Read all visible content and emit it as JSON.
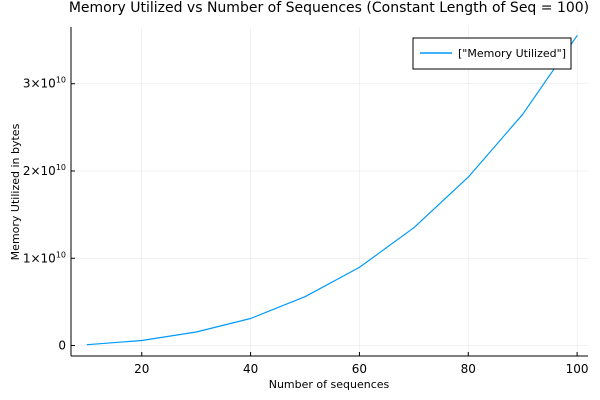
{
  "chart_data": {
    "type": "line",
    "title": "Memory Utilized vs Number of Sequences (Constant Length of Seq = 100)",
    "xlabel": "Number of sequences",
    "ylabel": "Memory Utilized in bytes",
    "xlim": [
      7,
      102
    ],
    "ylim": [
      -1200000000,
      36500000000
    ],
    "x_ticks": [
      20,
      40,
      60,
      80,
      100
    ],
    "y_ticks": [
      {
        "value": 0,
        "label": "0"
      },
      {
        "value": 10000000000,
        "label": "1×10",
        "exp": "10"
      },
      {
        "value": 20000000000,
        "label": "2×10",
        "exp": "10"
      },
      {
        "value": 30000000000,
        "label": "3×10",
        "exp": "10"
      }
    ],
    "grid": true,
    "legend_position": "top-right",
    "series": [
      {
        "name": "[\"Memory Utilized\"]",
        "color": "#009AFA",
        "x": [
          10,
          20,
          30,
          40,
          50,
          60,
          70,
          80,
          90,
          100
        ],
        "values": [
          100000000,
          580000000,
          1550000000,
          3100000000,
          5600000000,
          8950000000,
          13500000000,
          19300000000,
          26500000000,
          35500000000
        ]
      }
    ]
  }
}
